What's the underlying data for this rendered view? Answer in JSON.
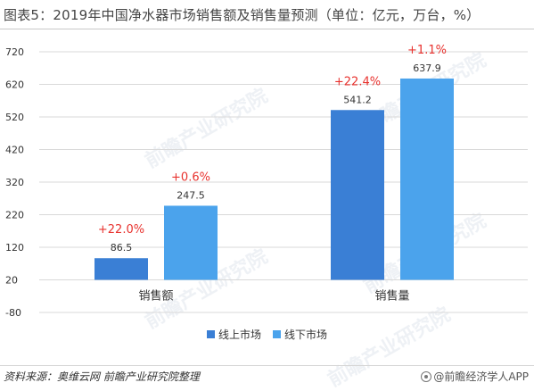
{
  "title": "图表5：2019年中国净水器市场销售额及销售量预测（单位：亿元，万台，%）",
  "source": "资料来源：奥维云网 前瞻产业研究院整理",
  "brand": "@前瞻经济学人APP",
  "watermark": "前瞻产业研究院",
  "colors": {
    "online": "#3A7FD5",
    "offline": "#4BA3EC",
    "growth": "#E8322E",
    "grid": "#D9D9D9",
    "axis_text": "#333333"
  },
  "chart_data": {
    "type": "bar",
    "categories": [
      "销售额",
      "销售量"
    ],
    "series": [
      {
        "name": "线上市场",
        "values": [
          86.5,
          541.2
        ],
        "labels": [
          "86.5",
          "541.2"
        ],
        "growth": [
          "+22.0%",
          "+22.4%"
        ]
      },
      {
        "name": "线下市场",
        "values": [
          247.5,
          637.9
        ],
        "labels": [
          "247.5",
          "637.9"
        ],
        "growth": [
          "+0.6%",
          "+1.1%"
        ]
      }
    ],
    "yticks": [
      720,
      620,
      520,
      420,
      320,
      220,
      120,
      20,
      -80
    ],
    "ylim": [
      -80,
      720
    ],
    "bar_baseline": 20,
    "grid": true,
    "legend": "bottom-center"
  }
}
